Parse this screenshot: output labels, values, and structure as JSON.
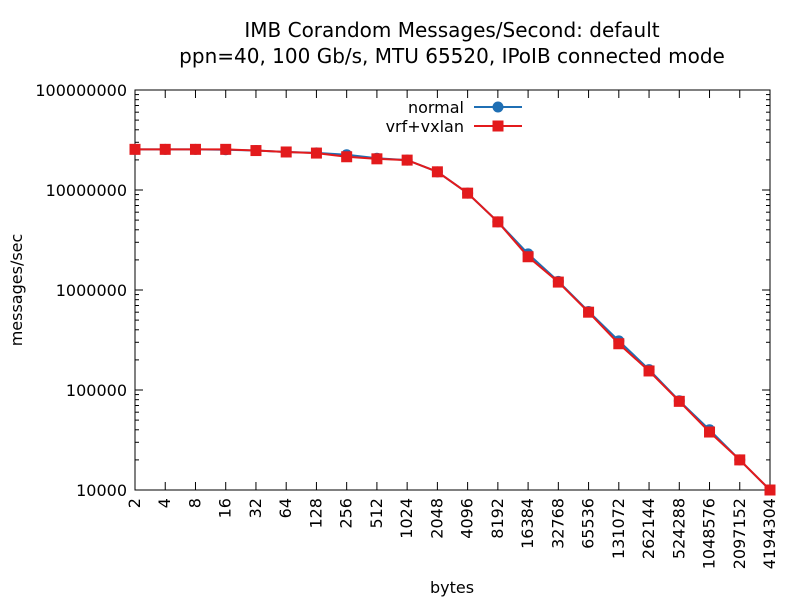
{
  "chart_data": {
    "type": "line",
    "title": "IMB Corandom Messages/Second: default",
    "subtitle": "ppn=40, 100 Gb/s, MTU 65520, IPoIB connected mode",
    "xlabel": "bytes",
    "ylabel": "messages/sec",
    "x_scale": "log2",
    "y_scale": "log10",
    "xlim": [
      2,
      4194304
    ],
    "ylim": [
      10000,
      100000000
    ],
    "grid": false,
    "legend_position": "top-center",
    "x_tick_labels": [
      "2",
      "4",
      "8",
      "16",
      "32",
      "64",
      "128",
      "256",
      "512",
      "1024",
      "2048",
      "4096",
      "8192",
      "16384",
      "32768",
      "65536",
      "131072",
      "262144",
      "524288",
      "1048576",
      "2097152",
      "4194304"
    ],
    "y_tick_labels": [
      "100000000",
      "10000000",
      "1000000",
      "100000",
      "10000"
    ],
    "x": [
      2,
      4,
      8,
      16,
      32,
      64,
      128,
      256,
      512,
      1024,
      2048,
      4096,
      8192,
      16384,
      32768,
      65536,
      131072,
      262144,
      524288,
      1048576,
      2097152,
      4194304
    ],
    "series": [
      {
        "name": "normal",
        "color": "#1f6fb4",
        "marker": "circle",
        "values": [
          25500000,
          25500000,
          25500000,
          25300000,
          24800000,
          24000000,
          23500000,
          22500000,
          20800000,
          19900000,
          15200000,
          9300000,
          4800000,
          2300000,
          1220000,
          610000,
          310000,
          160000,
          78000,
          40000,
          20000,
          10000
        ]
      },
      {
        "name": "vrf+vxlan",
        "color": "#e31a1c",
        "marker": "square",
        "values": [
          25500000,
          25500000,
          25500000,
          25500000,
          24800000,
          24000000,
          23400000,
          21500000,
          20500000,
          19900000,
          15200000,
          9300000,
          4800000,
          2150000,
          1200000,
          600000,
          290000,
          155000,
          77000,
          38000,
          20000,
          10000
        ]
      }
    ]
  }
}
